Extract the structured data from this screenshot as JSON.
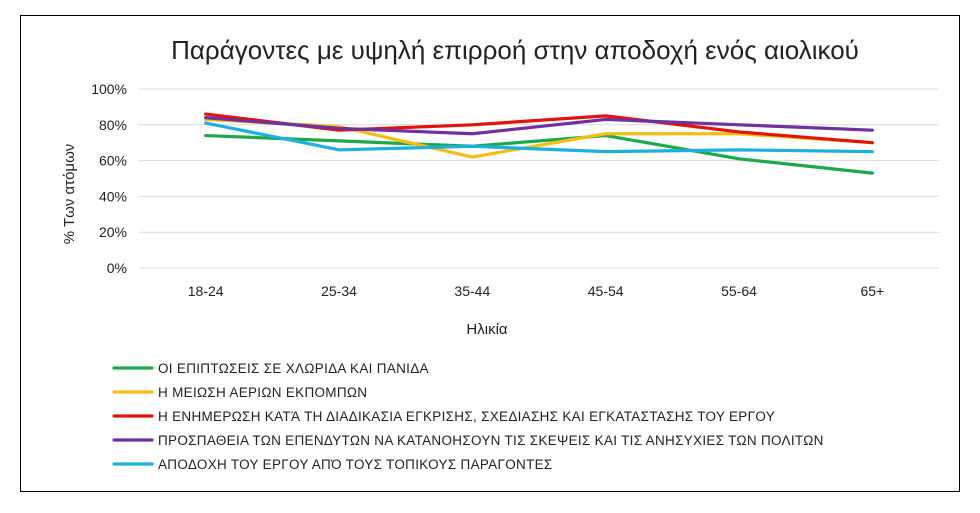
{
  "chart_data": {
    "type": "line",
    "title": "Παράγοντες με υψηλή επιρροή στην αποδοχή ενός αιολικού",
    "xlabel": "Ηλικία",
    "ylabel": "% Των ατόμων",
    "categories": [
      "18-24",
      "25-34",
      "35-44",
      "45-54",
      "55-64",
      "65+"
    ],
    "ylim": [
      0,
      100
    ],
    "yticks": [
      "0%",
      "20%",
      "40%",
      "60%",
      "80%",
      "100%"
    ],
    "grid": true,
    "legend_position": "bottom",
    "series": [
      {
        "name": "ΟΙ ΕΠΙΠΤΩΣΕΙΣ ΣΕ ΧΛΩΡΙΔΑ ΚΑΙ ΠΑΝΙΔΑ",
        "color": "#1aaa4a",
        "values": [
          74,
          71,
          68,
          74,
          61,
          53
        ]
      },
      {
        "name": "Η ΜΕΙΩΣΗ ΑΕΡΙΩΝ ΕΚΠΟΜΠΩΝ",
        "color": "#f6bd16",
        "values": [
          83,
          79,
          62,
          75,
          75,
          70
        ]
      },
      {
        "name": "Η ΕΝΗΜΕΡΩΣΗ ΚΑΤΆ ΤΗ ΔΙΑΔΙΚΑΣΙΑ ΕΓΚΡΙΣΗΣ, ΣΧΕΔΙΑΣΗΣ ΚΑΙ ΕΓΚΑΤΑΣΤΑΣΗΣ ΤΟΥ ΕΡΓΟΥ",
        "color": "#e3120b",
        "values": [
          86,
          77,
          80,
          85,
          76,
          70
        ]
      },
      {
        "name": "ΠΡΟΣΠΑΘΕΙΑ ΤΩΝ ΕΠΕΝΔΥΤΩΝ ΝΑ ΚΑΤΑΝΟΗΣΟΥΝ ΤΙΣ ΣΚΕΨΕΙΣ ΚΑΙ ΤΙΣ ΑΝΗΣΥΧΙΕΣ ΤΩΝ ΠΟΛΙΤΩΝ",
        "color": "#7030a0",
        "values": [
          84,
          78,
          75,
          83,
          80,
          77
        ]
      },
      {
        "name": "ΑΠΟΔΟΧΗ ΤΟΥ ΕΡΓΟΥ ΑΠΌ ΤΟΥΣ ΤΟΠΙΚΟΥΣ ΠΑΡΑΓΟΝΤΕΣ",
        "color": "#1cb0e0",
        "values": [
          81,
          66,
          68,
          65,
          66,
          65
        ]
      }
    ]
  }
}
